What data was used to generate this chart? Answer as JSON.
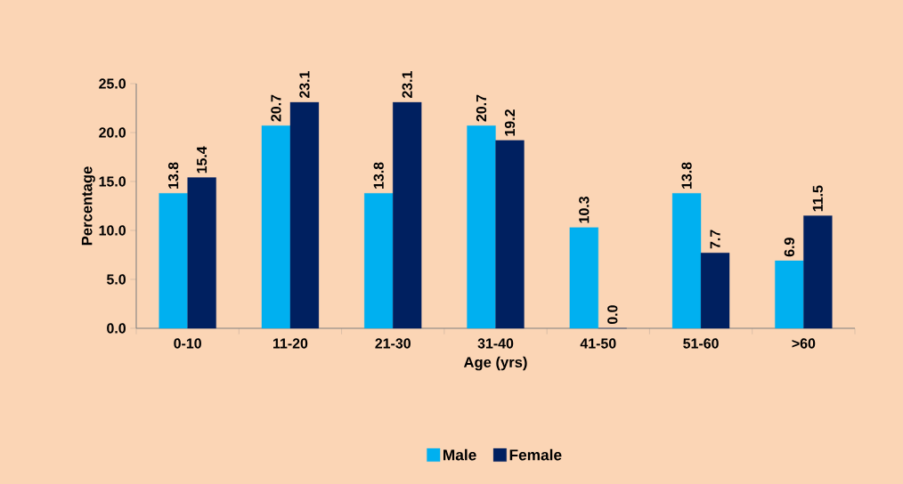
{
  "chart_data": {
    "type": "bar",
    "xlabel": "Age (yrs)",
    "ylabel": "Percentage",
    "categories": [
      "0-10",
      "11-20",
      "21-30",
      "31-40",
      "41-50",
      "51-60",
      ">60"
    ],
    "series": [
      {
        "name": "Male",
        "color": "#00b0f0",
        "values": [
          13.8,
          20.7,
          13.8,
          20.7,
          10.3,
          13.8,
          6.9
        ],
        "value_labels": [
          "13.8",
          "20.7",
          "13.8",
          "20.7",
          "10.3",
          "13.8",
          "6.9"
        ]
      },
      {
        "name": "Female",
        "color": "#002060",
        "values": [
          15.4,
          23.1,
          23.1,
          19.2,
          0.0,
          7.7,
          11.5
        ],
        "value_labels": [
          "15.4",
          "23.1",
          "23.1",
          "19.2",
          "0.0",
          "7.7",
          "11.5"
        ]
      }
    ],
    "ylim": [
      0,
      25
    ],
    "yticks": [
      {
        "value": 0,
        "label": "0.0"
      },
      {
        "value": 5,
        "label": "5.0"
      },
      {
        "value": 10,
        "label": "10.0"
      },
      {
        "value": 15,
        "label": "15.0"
      },
      {
        "value": 20,
        "label": "20.0"
      },
      {
        "value": 25,
        "label": "25.0"
      }
    ],
    "legend": "bottom",
    "grid": false
  }
}
